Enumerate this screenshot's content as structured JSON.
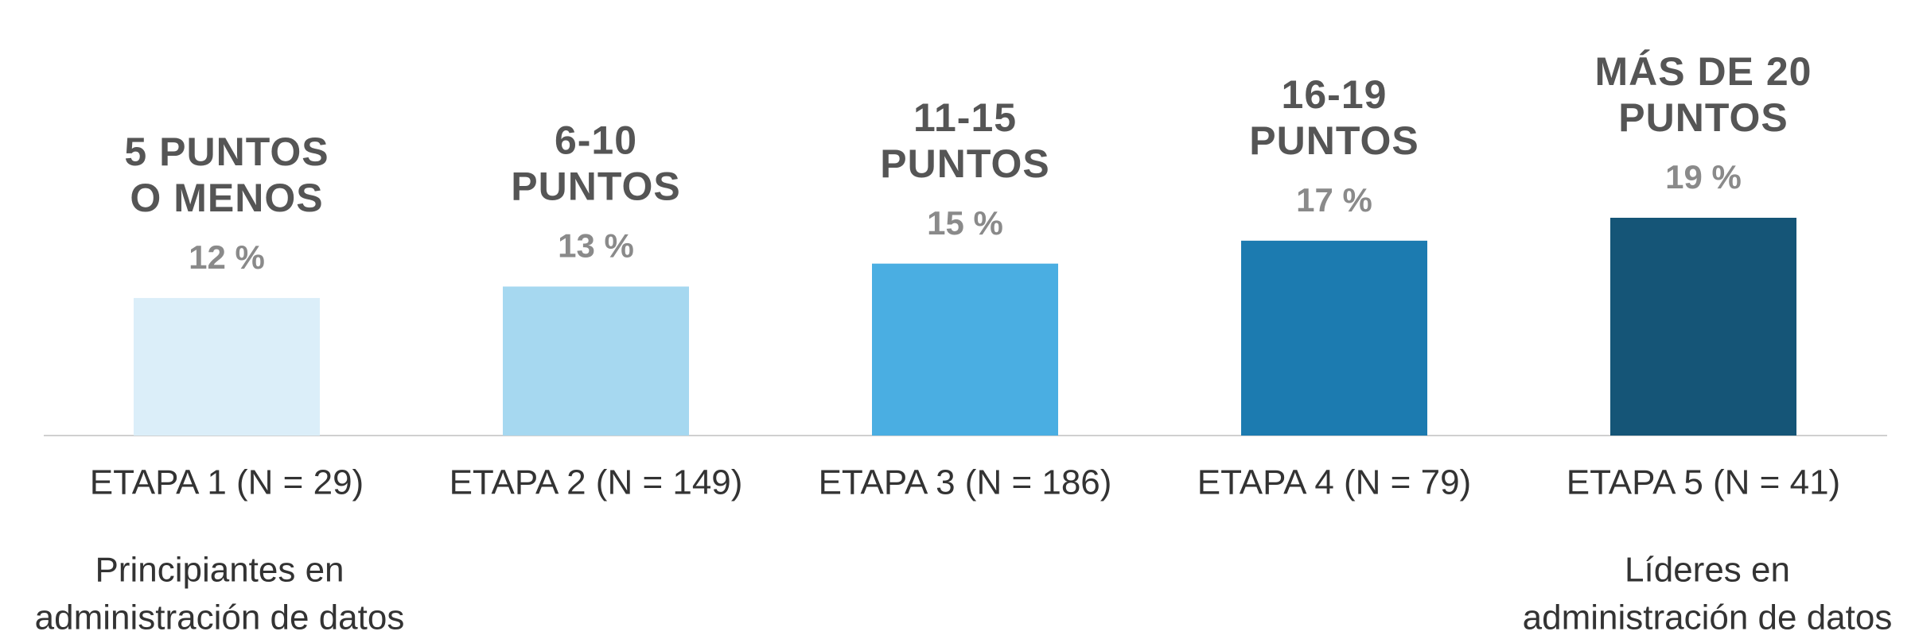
{
  "chart_data": {
    "type": "bar",
    "headers": [
      [
        "5 PUNTOS",
        "O MENOS"
      ],
      [
        "6-10",
        "PUNTOS"
      ],
      [
        "11-15",
        "PUNTOS"
      ],
      [
        "16-19",
        "PUNTOS"
      ],
      [
        "MÁS DE 20",
        "PUNTOS"
      ]
    ],
    "categories": [
      "ETAPA 1 (N = 29)",
      "ETAPA 2 (N = 149)",
      "ETAPA 3 (N = 186)",
      "ETAPA 4 (N = 79)",
      "ETAPA 5 (N = 41)"
    ],
    "values": [
      12,
      13,
      15,
      17,
      19
    ],
    "value_labels": [
      "12 %",
      "13 %",
      "15 %",
      "17 %",
      "19 %"
    ],
    "colors": [
      "#dbeef9",
      "#a6d8f0",
      "#4aaee2",
      "#1c7bb0",
      "#155577"
    ],
    "notes": [
      [
        "Principiantes en",
        "administración de datos"
      ],
      null,
      null,
      null,
      [
        "Líderes en",
        "administración de datos"
      ]
    ],
    "ylim": [
      0,
      38
    ]
  }
}
